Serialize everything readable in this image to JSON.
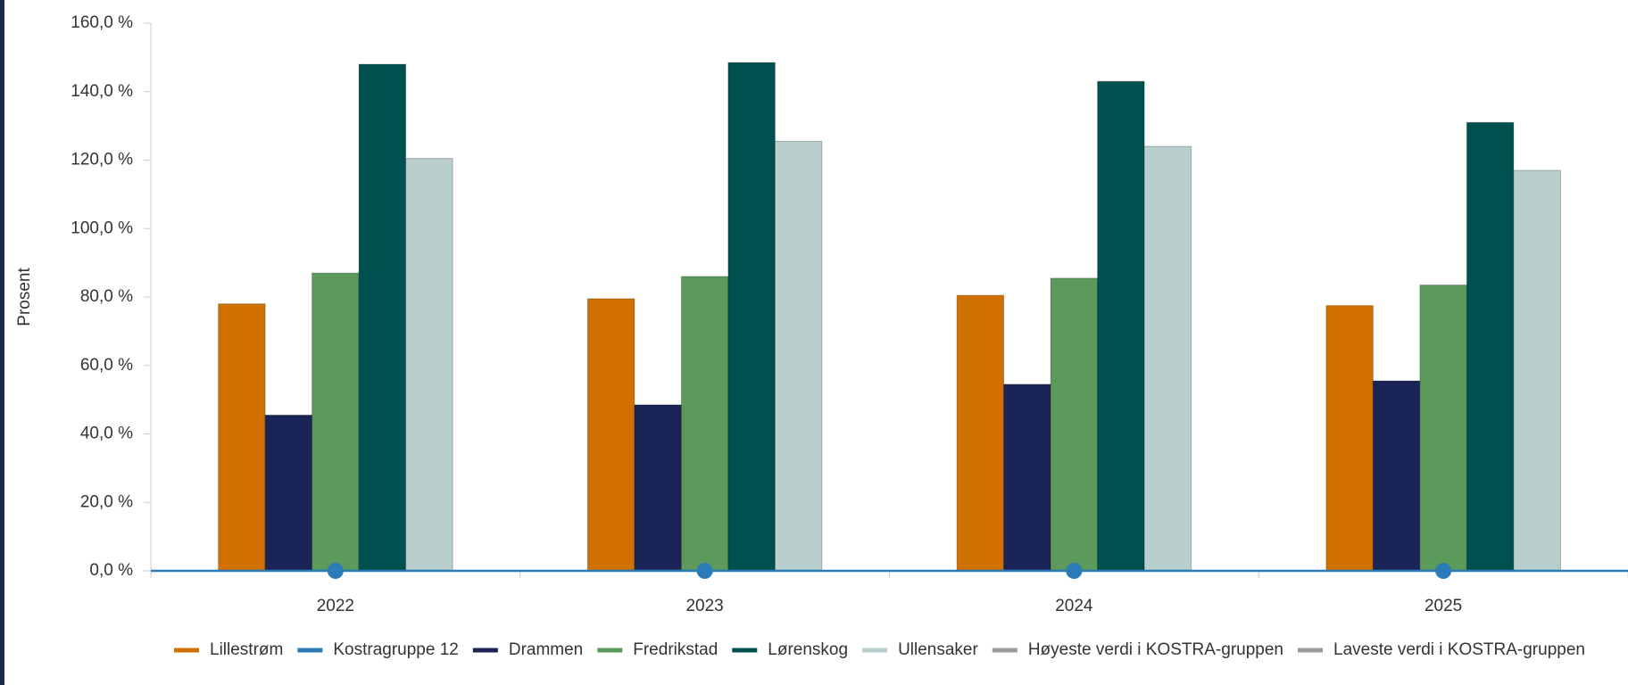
{
  "chart_data": {
    "type": "bar",
    "y_label": "Prosent",
    "categories": [
      "2022",
      "2023",
      "2024",
      "2025"
    ],
    "series": [
      {
        "name": "Lillestrøm",
        "color": "#d07000",
        "values": [
          78,
          79.5,
          80.5,
          77.5
        ]
      },
      {
        "name": "Kostragruppe 12",
        "color": "#2b7bb9",
        "type": "line",
        "values": [
          0,
          0,
          0,
          0
        ]
      },
      {
        "name": "Drammen",
        "color": "#1a2456",
        "values": [
          45.5,
          48.5,
          54.5,
          55.5
        ]
      },
      {
        "name": "Fredrikstad",
        "color": "#5c9a5c",
        "values": [
          87,
          86,
          85.5,
          83.5
        ]
      },
      {
        "name": "Lørenskog",
        "color": "#00504f",
        "values": [
          148,
          148.5,
          143,
          131
        ]
      },
      {
        "name": "Ullensaker",
        "color": "#b8cfcd",
        "values": [
          120.5,
          125.5,
          124,
          117
        ]
      },
      {
        "name": "Høyeste verdi i KOSTRA-gruppen",
        "color": "#8a8a8a",
        "hidden": true,
        "values": [
          null,
          null,
          null,
          null
        ]
      },
      {
        "name": "Laveste verdi i KOSTRA-gruppen",
        "color": "#8a8a8a",
        "hidden": true,
        "values": [
          null,
          null,
          null,
          null
        ]
      }
    ],
    "ylim": [
      0,
      160
    ],
    "yticks": [
      {
        "value": 0,
        "label": "0,0 %"
      },
      {
        "value": 20,
        "label": "20,0 %"
      },
      {
        "value": 40,
        "label": "40,0 %"
      },
      {
        "value": 60,
        "label": "60,0 %"
      },
      {
        "value": 80,
        "label": "80,0 %"
      },
      {
        "value": 100,
        "label": "100,0 %"
      },
      {
        "value": 120,
        "label": "120,0 %"
      },
      {
        "value": 140,
        "label": "140,0 %"
      },
      {
        "value": 160,
        "label": "160,0 %"
      }
    ],
    "grid": false
  }
}
